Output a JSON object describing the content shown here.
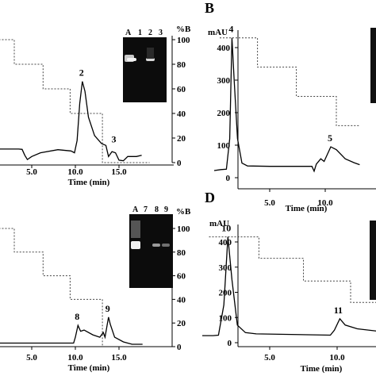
{
  "figure": {
    "panel_letters": [
      "B",
      "D"
    ],
    "gel_lane_labels": {
      "A_panel": [
        "A",
        "1",
        "2",
        "3"
      ],
      "C_panel": [
        "A",
        "7",
        "8",
        "9"
      ]
    }
  },
  "chart_data": [
    {
      "panel": "A",
      "type": "line",
      "xlabel": "Time (min)",
      "x_ticks": [
        "5.0",
        "10.0",
        "15.0"
      ],
      "y2label": "%B",
      "y2_ticks": [
        "100",
        "80",
        "60",
        "40",
        "20",
        "0"
      ],
      "xlim": [
        0.5,
        18.5
      ],
      "y2lim": [
        0,
        100
      ],
      "gradient_percent_B": [
        {
          "x": 0.5,
          "y": 100
        },
        {
          "x": 3.0,
          "y": 100
        },
        {
          "x": 3.0,
          "y": 80
        },
        {
          "x": 6.3,
          "y": 80
        },
        {
          "x": 6.3,
          "y": 60
        },
        {
          "x": 9.4,
          "y": 60
        },
        {
          "x": 9.4,
          "y": 40
        },
        {
          "x": 13.1,
          "y": 40
        },
        {
          "x": 13.1,
          "y": 0
        },
        {
          "x": 18.5,
          "y": 0
        }
      ],
      "trace": [
        {
          "x": 0.5,
          "y": 11
        },
        {
          "x": 3.5,
          "y": 11
        },
        {
          "x": 3.9,
          "y": 10.8
        },
        {
          "x": 4.2,
          "y": 6
        },
        {
          "x": 4.5,
          "y": 2.5
        },
        {
          "x": 5.0,
          "y": 5
        },
        {
          "x": 6.0,
          "y": 8
        },
        {
          "x": 8.0,
          "y": 10.5
        },
        {
          "x": 9.5,
          "y": 9.5
        },
        {
          "x": 9.9,
          "y": 8
        },
        {
          "x": 10.2,
          "y": 18
        },
        {
          "x": 10.5,
          "y": 48
        },
        {
          "x": 10.8,
          "y": 66
        },
        {
          "x": 11.1,
          "y": 58
        },
        {
          "x": 11.5,
          "y": 37
        },
        {
          "x": 12.2,
          "y": 22
        },
        {
          "x": 13.0,
          "y": 15.5
        },
        {
          "x": 13.5,
          "y": 14
        },
        {
          "x": 13.8,
          "y": 5
        },
        {
          "x": 14.2,
          "y": 9
        },
        {
          "x": 14.6,
          "y": 8
        },
        {
          "x": 15.0,
          "y": 2
        },
        {
          "x": 15.5,
          "y": 1.5
        },
        {
          "x": 16.0,
          "y": 5
        },
        {
          "x": 17.0,
          "y": 5
        },
        {
          "x": 17.6,
          "y": 6
        }
      ],
      "peaks": [
        {
          "label": "2",
          "x": 10.8,
          "y": 66
        },
        {
          "label": "3",
          "x": 14.5,
          "y": 12
        }
      ]
    },
    {
      "panel": "B",
      "type": "line",
      "ylabel": "mAU",
      "y_ticks": [
        "400",
        "300",
        "200",
        "100",
        "0"
      ],
      "ylim": [
        0,
        450
      ],
      "xlabel": "Time (min)",
      "x_ticks": [
        "5.0",
        "10.0"
      ],
      "xlim": [
        0,
        13.1
      ],
      "gradient_level": [
        {
          "x": 0.5,
          "y": 430
        },
        {
          "x": 3.9,
          "y": 430
        },
        {
          "x": 3.9,
          "y": 340
        },
        {
          "x": 7.4,
          "y": 340
        },
        {
          "x": 7.4,
          "y": 250
        },
        {
          "x": 11.0,
          "y": 250
        },
        {
          "x": 11.0,
          "y": 160
        },
        {
          "x": 13.1,
          "y": 160
        }
      ],
      "trace": [
        {
          "x": 0.0,
          "y": 22
        },
        {
          "x": 0.6,
          "y": 25
        },
        {
          "x": 1.1,
          "y": 26
        },
        {
          "x": 1.4,
          "y": 120
        },
        {
          "x": 1.6,
          "y": 430
        },
        {
          "x": 1.8,
          "y": 300
        },
        {
          "x": 2.1,
          "y": 120
        },
        {
          "x": 2.5,
          "y": 45
        },
        {
          "x": 3.0,
          "y": 36
        },
        {
          "x": 5.0,
          "y": 35
        },
        {
          "x": 8.8,
          "y": 35
        },
        {
          "x": 9.0,
          "y": 20
        },
        {
          "x": 9.2,
          "y": 42
        },
        {
          "x": 9.6,
          "y": 58
        },
        {
          "x": 9.9,
          "y": 50
        },
        {
          "x": 10.5,
          "y": 95
        },
        {
          "x": 11.0,
          "y": 86
        },
        {
          "x": 11.8,
          "y": 58
        },
        {
          "x": 12.6,
          "y": 46
        },
        {
          "x": 13.1,
          "y": 40
        }
      ],
      "peaks": [
        {
          "label": "4",
          "x": 1.6,
          "y": 430
        },
        {
          "label": "5",
          "x": 10.5,
          "y": 95
        }
      ]
    },
    {
      "panel": "C",
      "type": "line",
      "xlabel": "Time (min)",
      "x_ticks": [
        "5.0",
        "10.0",
        "15.0"
      ],
      "y2label": "%B",
      "y2_ticks": [
        "100",
        "80",
        "60",
        "40",
        "20",
        "0"
      ],
      "xlim": [
        0.5,
        18.5
      ],
      "y2lim": [
        0,
        100
      ],
      "gradient_percent_B": [
        {
          "x": 0.5,
          "y": 100
        },
        {
          "x": 3.0,
          "y": 100
        },
        {
          "x": 3.0,
          "y": 80
        },
        {
          "x": 6.3,
          "y": 80
        },
        {
          "x": 6.3,
          "y": 60
        },
        {
          "x": 9.4,
          "y": 60
        },
        {
          "x": 9.4,
          "y": 40
        },
        {
          "x": 13.1,
          "y": 40
        },
        {
          "x": 13.1,
          "y": 0
        },
        {
          "x": 18.5,
          "y": 0
        }
      ],
      "trace": [
        {
          "x": 0.5,
          "y": 3
        },
        {
          "x": 9.8,
          "y": 3
        },
        {
          "x": 10.0,
          "y": 8
        },
        {
          "x": 10.3,
          "y": 18
        },
        {
          "x": 10.6,
          "y": 13
        },
        {
          "x": 11.0,
          "y": 14
        },
        {
          "x": 12.0,
          "y": 10
        },
        {
          "x": 12.8,
          "y": 8
        },
        {
          "x": 13.2,
          "y": 12
        },
        {
          "x": 13.4,
          "y": 8
        },
        {
          "x": 13.8,
          "y": 25
        },
        {
          "x": 14.0,
          "y": 19
        },
        {
          "x": 14.5,
          "y": 8
        },
        {
          "x": 15.5,
          "y": 4
        },
        {
          "x": 16.5,
          "y": 2
        },
        {
          "x": 17.7,
          "y": 2
        }
      ],
      "peaks": [
        {
          "label": "8",
          "x": 10.3,
          "y": 18
        },
        {
          "label": "9",
          "x": 13.8,
          "y": 25
        }
      ]
    },
    {
      "panel": "D",
      "type": "line",
      "ylabel": "mAU",
      "y_ticks": [
        "400",
        "300",
        "200",
        "100",
        "0"
      ],
      "ylim": [
        0,
        450
      ],
      "xlabel": "Time (min)",
      "x_ticks": [
        "5.0",
        "10.0"
      ],
      "xlim": [
        0,
        13.1
      ],
      "gradient_level": [
        {
          "x": 0.5,
          "y": 420
        },
        {
          "x": 4.2,
          "y": 420
        },
        {
          "x": 4.2,
          "y": 335
        },
        {
          "x": 7.5,
          "y": 335
        },
        {
          "x": 7.5,
          "y": 245
        },
        {
          "x": 11.0,
          "y": 245
        },
        {
          "x": 11.0,
          "y": 160
        },
        {
          "x": 13.1,
          "y": 160
        }
      ],
      "trace": [
        {
          "x": 0.0,
          "y": 28
        },
        {
          "x": 0.8,
          "y": 28
        },
        {
          "x": 1.2,
          "y": 30
        },
        {
          "x": 1.6,
          "y": 150
        },
        {
          "x": 1.9,
          "y": 420
        },
        {
          "x": 2.2,
          "y": 250
        },
        {
          "x": 2.6,
          "y": 70
        },
        {
          "x": 3.2,
          "y": 40
        },
        {
          "x": 4.0,
          "y": 35
        },
        {
          "x": 9.5,
          "y": 30
        },
        {
          "x": 9.8,
          "y": 50
        },
        {
          "x": 10.2,
          "y": 95
        },
        {
          "x": 10.6,
          "y": 70
        },
        {
          "x": 11.5,
          "y": 55
        },
        {
          "x": 13.1,
          "y": 45
        }
      ],
      "peaks": [
        {
          "label": "10",
          "x": 1.9,
          "y": 420
        },
        {
          "label": "11",
          "x": 10.2,
          "y": 95
        }
      ]
    }
  ]
}
